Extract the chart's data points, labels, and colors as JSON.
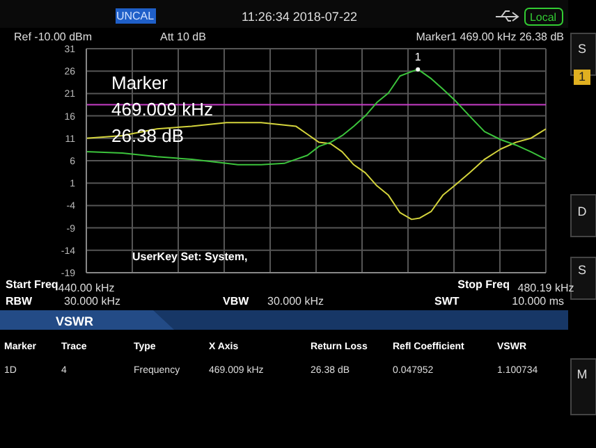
{
  "chart_data": {
    "type": "line",
    "xlim": [
      440,
      480.19
    ],
    "xticks": [
      {
        "value": 440,
        "label": "440.00 kHz"
      },
      {
        "value": 444.019,
        "label": null
      },
      {
        "value": 448.038,
        "label": null
      },
      {
        "value": 452.057,
        "label": null
      },
      {
        "value": 456.076,
        "label": null
      },
      {
        "value": 460.095,
        "label": null
      },
      {
        "value": 464.114,
        "label": null
      },
      {
        "value": 468.133,
        "label": null
      },
      {
        "value": 472.152,
        "label": null
      },
      {
        "value": 476.171,
        "label": null
      },
      {
        "value": 480.19,
        "label": "480.19 kHz"
      }
    ],
    "ylim": [
      -19,
      31
    ],
    "yticks": [
      31,
      26,
      21,
      16,
      11,
      6,
      1,
      -4,
      -9,
      -14,
      -19
    ],
    "grid": true,
    "marker": "none",
    "series": [
      {
        "color": "#d4d43c",
        "x": [
          440,
          443.14,
          446.18,
          449.21,
          452.25,
          455.29,
          458.32,
          459.34,
          460.35,
          461.36,
          462.37,
          463.39,
          464.4,
          465.41,
          466.42,
          467.43,
          468.45,
          469.16,
          470.17,
          471.18,
          472.19,
          473.51,
          474.82,
          476.24,
          477.56,
          478.87,
          480.19
        ],
        "values": [
          11.0,
          11.6,
          13.1,
          13.7,
          14.5,
          14.5,
          13.7,
          11.9,
          10.1,
          9.8,
          8.0,
          5.1,
          3.3,
          0.4,
          -1.7,
          -5.6,
          -7.1,
          -6.8,
          -5.3,
          -1.7,
          0.4,
          3.3,
          6.3,
          8.6,
          10.1,
          11.0,
          13.1
        ]
      },
      {
        "color": "#3cc43c",
        "x": [
          440,
          443.14,
          446.18,
          449.21,
          452.25,
          453.26,
          455.29,
          457.31,
          459.34,
          460.35,
          461.36,
          462.37,
          463.39,
          464.4,
          465.41,
          466.42,
          467.43,
          468.45,
          469.0,
          470.17,
          471.18,
          472.19,
          473.51,
          474.82,
          476.24,
          477.56,
          478.87,
          480.19
        ],
        "values": [
          8.0,
          7.7,
          6.9,
          6.3,
          5.4,
          5.1,
          5.1,
          5.4,
          7.2,
          9.2,
          10.1,
          11.6,
          13.7,
          16.0,
          19.0,
          21.1,
          24.9,
          25.9,
          26.4,
          24.3,
          22.0,
          19.6,
          16.0,
          12.5,
          10.7,
          9.5,
          8.0,
          6.3
        ]
      }
    ],
    "ref_lines": [
      {
        "axis": "y",
        "value": 18.5,
        "color": "#c83cc8"
      }
    ],
    "annotations": [
      "UNCAL",
      "11:26:34 2018-07-22",
      "Local",
      "Ref -10.00 dBm",
      "Att 10 dB",
      "Marker1 469.00 kHz 26.38 dB",
      "Marker",
      "469.009 kHz",
      "26.38 dB",
      "UserKey Set: System,",
      "Start Freq",
      "Stop Freq",
      "RBW",
      "30.000 kHz",
      "VBW",
      "30.000 kHz",
      "SWT",
      "10.000 ms",
      "VSWR",
      "Marker",
      "Trace",
      "Type",
      "X Axis",
      "Return Loss",
      "Refl Coefficient",
      "VSWR",
      "1D",
      "4",
      "Frequency",
      "469.009 kHz",
      "26.38 dB",
      "0.047952",
      "1.100734",
      "S",
      "1",
      "D",
      "S",
      "M",
      {
        "text": "1",
        "x": 469.0,
        "y": 26.38
      }
    ]
  }
}
